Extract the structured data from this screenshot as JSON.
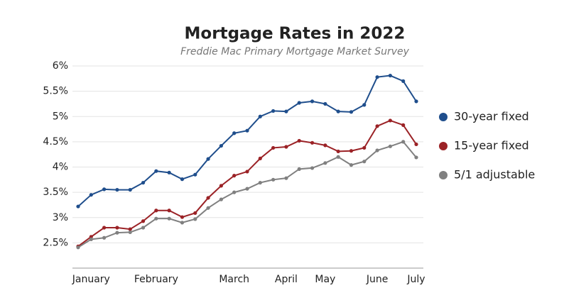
{
  "chart_data": {
    "type": "line",
    "title": "Mortgage Rates in 2022",
    "subtitle": "Freddie Mac Primary Mortgage Market Survey",
    "categories": [
      null,
      "January",
      null,
      null,
      null,
      null,
      "February",
      null,
      null,
      null,
      null,
      null,
      "March",
      null,
      null,
      null,
      "April",
      null,
      null,
      "May",
      null,
      null,
      null,
      "June",
      null,
      null,
      "July"
    ],
    "series": [
      {
        "name": "30-year fixed",
        "color": "#1f4e8c",
        "values": [
          3.22,
          3.45,
          3.56,
          3.55,
          3.55,
          3.69,
          3.92,
          3.89,
          3.76,
          3.85,
          4.16,
          4.42,
          4.67,
          4.72,
          5.0,
          5.11,
          5.1,
          5.27,
          5.3,
          5.25,
          5.1,
          5.09,
          5.23,
          5.78,
          5.81,
          5.7,
          5.3
        ]
      },
      {
        "name": "15-year fixed",
        "color": "#9b2226",
        "values": [
          2.43,
          2.62,
          2.8,
          2.8,
          2.77,
          2.93,
          3.14,
          3.14,
          3.01,
          3.09,
          3.39,
          3.63,
          3.83,
          3.91,
          4.17,
          4.38,
          4.4,
          4.52,
          4.48,
          4.43,
          4.31,
          4.32,
          4.38,
          4.81,
          4.92,
          4.83,
          4.45
        ]
      },
      {
        "name": "5/1 adjustable",
        "color": "#808080",
        "values": [
          2.41,
          2.57,
          2.6,
          2.7,
          2.71,
          2.8,
          2.98,
          2.98,
          2.9,
          2.97,
          3.19,
          3.36,
          3.5,
          3.57,
          3.69,
          3.75,
          3.78,
          3.96,
          3.98,
          4.08,
          4.2,
          4.04,
          4.11,
          4.33,
          4.41,
          4.5,
          4.19
        ]
      }
    ],
    "ylim": [
      2,
      6
    ],
    "yticks": [
      {
        "value": 2.5,
        "label": "2.5%"
      },
      {
        "value": 3,
        "label": "3%"
      },
      {
        "value": 3.5,
        "label": "3.5%"
      },
      {
        "value": 4,
        "label": "4%"
      },
      {
        "value": 4.5,
        "label": "4.5%"
      },
      {
        "value": 5,
        "label": "5%"
      },
      {
        "value": 5.5,
        "label": "5.5%"
      },
      {
        "value": 6,
        "label": "6%"
      }
    ],
    "grid": true,
    "legend": "right"
  }
}
